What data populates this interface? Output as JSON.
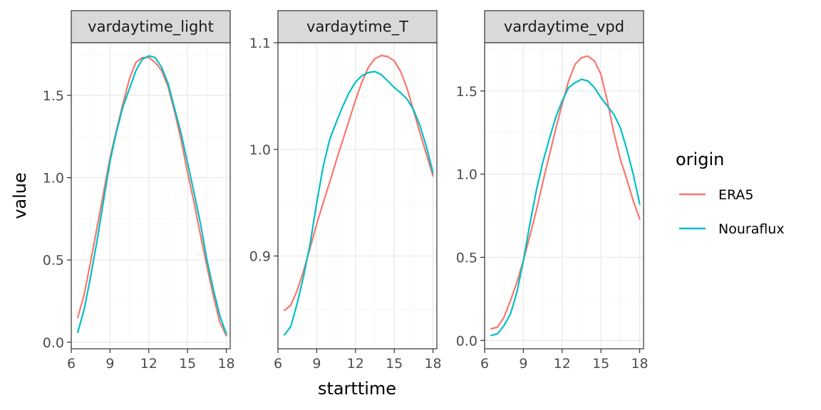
{
  "chart_data": {
    "type": "line",
    "xlabel": "starttime",
    "ylabel": "value",
    "legend": {
      "title": "origin",
      "position": "right",
      "entries": [
        {
          "name": "ERA5",
          "color": "#F8766D"
        },
        {
          "name": "Nouraflux",
          "color": "#00BFC4"
        }
      ]
    },
    "grid": true,
    "panels": [
      {
        "strip": "vardaytime_light",
        "xlim": [
          6.0,
          18.3
        ],
        "ylim": [
          -0.04,
          1.82
        ],
        "x_ticks": [
          6,
          9,
          12,
          15,
          18
        ],
        "y_ticks": [
          0.0,
          0.5,
          1.0,
          1.5
        ],
        "y_tick_labels": [
          "0.0",
          "0.5",
          "1.0",
          "1.5"
        ],
        "series": [
          {
            "name": "ERA5",
            "x": [
              6.5,
              7,
              7.5,
              8,
              8.5,
              9,
              9.5,
              10,
              10.5,
              11,
              11.5,
              12,
              12.5,
              13,
              13.5,
              14,
              14.5,
              15,
              15.5,
              16,
              16.5,
              17,
              17.5,
              18
            ],
            "values": [
              0.15,
              0.29,
              0.49,
              0.7,
              0.91,
              1.12,
              1.29,
              1.45,
              1.6,
              1.7,
              1.73,
              1.73,
              1.7,
              1.65,
              1.55,
              1.4,
              1.23,
              1.03,
              0.85,
              0.65,
              0.46,
              0.28,
              0.12,
              0.04
            ]
          },
          {
            "name": "Nouraflux",
            "x": [
              6.5,
              7,
              7.5,
              8,
              8.5,
              9,
              9.5,
              10,
              10.5,
              11,
              11.5,
              12,
              12.5,
              13,
              13.5,
              14,
              14.5,
              15,
              15.5,
              16,
              16.5,
              17,
              17.5,
              18
            ],
            "values": [
              0.06,
              0.2,
              0.4,
              0.62,
              0.86,
              1.1,
              1.28,
              1.43,
              1.54,
              1.65,
              1.72,
              1.74,
              1.73,
              1.67,
              1.57,
              1.42,
              1.27,
              1.09,
              0.91,
              0.72,
              0.5,
              0.32,
              0.16,
              0.05
            ]
          }
        ]
      },
      {
        "strip": "vardaytime_T",
        "xlim": [
          6.0,
          18.3
        ],
        "ylim": [
          0.813,
          1.1
        ],
        "x_ticks": [
          6,
          9,
          12,
          15,
          18
        ],
        "y_ticks": [
          0.9,
          1.0,
          1.1
        ],
        "y_tick_labels": [
          "0.9",
          "1.0",
          "1.1"
        ],
        "series": [
          {
            "name": "ERA5",
            "x": [
              6.5,
              7,
              7.5,
              8,
              8.5,
              9,
              9.5,
              10,
              10.5,
              11,
              11.5,
              12,
              12.5,
              13,
              13.5,
              14,
              14.5,
              15,
              15.5,
              16,
              16.5,
              17,
              17.5,
              18
            ],
            "values": [
              0.849,
              0.854,
              0.868,
              0.887,
              0.908,
              0.93,
              0.95,
              0.969,
              0.989,
              1.008,
              1.027,
              1.046,
              1.063,
              1.077,
              1.085,
              1.088,
              1.087,
              1.083,
              1.073,
              1.057,
              1.036,
              1.015,
              0.995,
              0.975
            ]
          },
          {
            "name": "Nouraflux",
            "x": [
              6.5,
              7,
              7.5,
              8,
              8.5,
              9,
              9.5,
              10,
              10.5,
              11,
              11.5,
              12,
              12.5,
              13,
              13.5,
              14,
              14.5,
              15,
              15.5,
              16,
              16.5,
              17,
              17.5,
              18
            ],
            "values": [
              0.826,
              0.834,
              0.856,
              0.882,
              0.912,
              0.95,
              0.984,
              1.009,
              1.025,
              1.04,
              1.053,
              1.063,
              1.069,
              1.072,
              1.073,
              1.07,
              1.064,
              1.058,
              1.053,
              1.047,
              1.037,
              1.022,
              1.002,
              0.978
            ]
          }
        ]
      },
      {
        "strip": "vardaytime_vpd",
        "xlim": [
          6.0,
          18.3
        ],
        "ylim": [
          -0.05,
          1.79
        ],
        "x_ticks": [
          6,
          9,
          12,
          15,
          18
        ],
        "y_ticks": [
          0.0,
          0.5,
          1.0,
          1.5
        ],
        "y_tick_labels": [
          "0.0",
          "0.5",
          "1.0",
          "1.5"
        ],
        "series": [
          {
            "name": "ERA5",
            "x": [
              6.5,
              7,
              7.5,
              8,
              8.5,
              9,
              9.5,
              10,
              10.5,
              11,
              11.5,
              12,
              12.5,
              13,
              13.5,
              14,
              14.5,
              15,
              15.5,
              16,
              16.5,
              17,
              17.5,
              18
            ],
            "values": [
              0.07,
              0.08,
              0.14,
              0.24,
              0.35,
              0.48,
              0.63,
              0.78,
              0.95,
              1.11,
              1.27,
              1.42,
              1.56,
              1.66,
              1.7,
              1.71,
              1.68,
              1.6,
              1.44,
              1.25,
              1.09,
              0.97,
              0.84,
              0.73
            ]
          },
          {
            "name": "Nouraflux",
            "x": [
              6.5,
              7,
              7.5,
              8,
              8.5,
              9,
              9.5,
              10,
              10.5,
              11,
              11.5,
              12,
              12.5,
              13,
              13.5,
              14,
              14.5,
              15,
              15.5,
              16,
              16.5,
              17,
              17.5,
              18
            ],
            "values": [
              0.03,
              0.04,
              0.09,
              0.16,
              0.29,
              0.48,
              0.7,
              0.9,
              1.07,
              1.21,
              1.34,
              1.44,
              1.52,
              1.55,
              1.57,
              1.56,
              1.52,
              1.46,
              1.41,
              1.36,
              1.28,
              1.15,
              1.0,
              0.82
            ]
          }
        ]
      }
    ]
  }
}
